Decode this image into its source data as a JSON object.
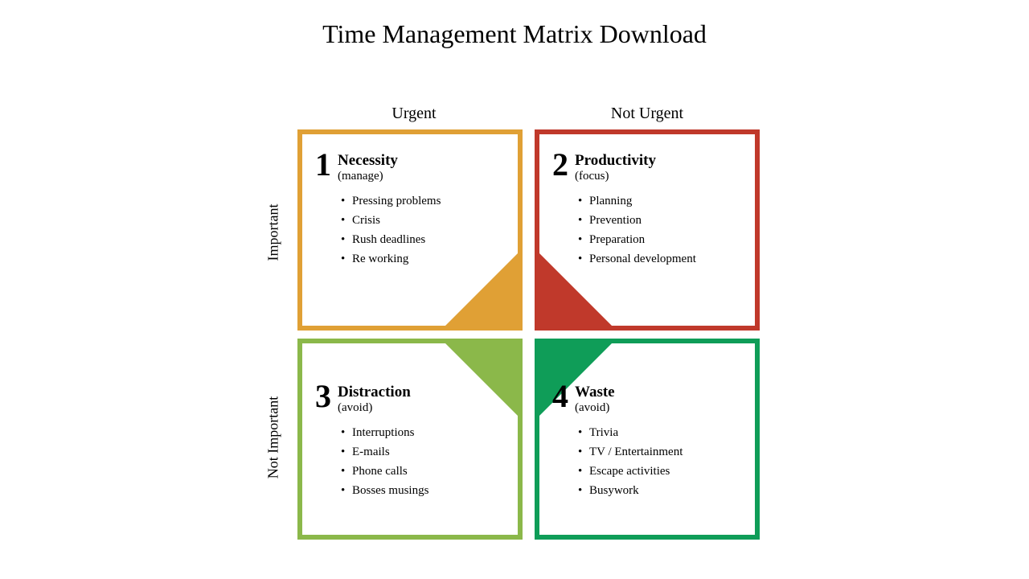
{
  "title": "Time Management Matrix Download",
  "colHeaders": [
    "Urgent",
    "Not Urgent"
  ],
  "rowHeaders": [
    "Important",
    "Not Important"
  ],
  "quadrants": [
    {
      "num": "1",
      "title": "Necessity",
      "sub": "(manage)",
      "items": [
        "Pressing problems",
        "Crisis",
        "Rush deadlines",
        "Re working"
      ],
      "color": "#e0a035",
      "triCorner": "br"
    },
    {
      "num": "2",
      "title": "Productivity",
      "sub": "(focus)",
      "items": [
        "Planning",
        "Prevention",
        "Preparation",
        "Personal development"
      ],
      "color": "#c0392b",
      "triCorner": "bl"
    },
    {
      "num": "3",
      "title": "Distraction",
      "sub": "(avoid)",
      "items": [
        "Interruptions",
        "E-mails",
        "Phone calls",
        "Bosses musings"
      ],
      "color": "#8bb84a",
      "triCorner": "tr"
    },
    {
      "num": "4",
      "title": "Waste",
      "sub": "(avoid)",
      "items": [
        "Trivia",
        "TV / Entertainment",
        "Escape activities",
        "Busywork"
      ],
      "color": "#0f9d58",
      "triCorner": "tl"
    }
  ],
  "style": {
    "triangleSize": 90,
    "borderWidth": 6,
    "background": "#ffffff"
  }
}
